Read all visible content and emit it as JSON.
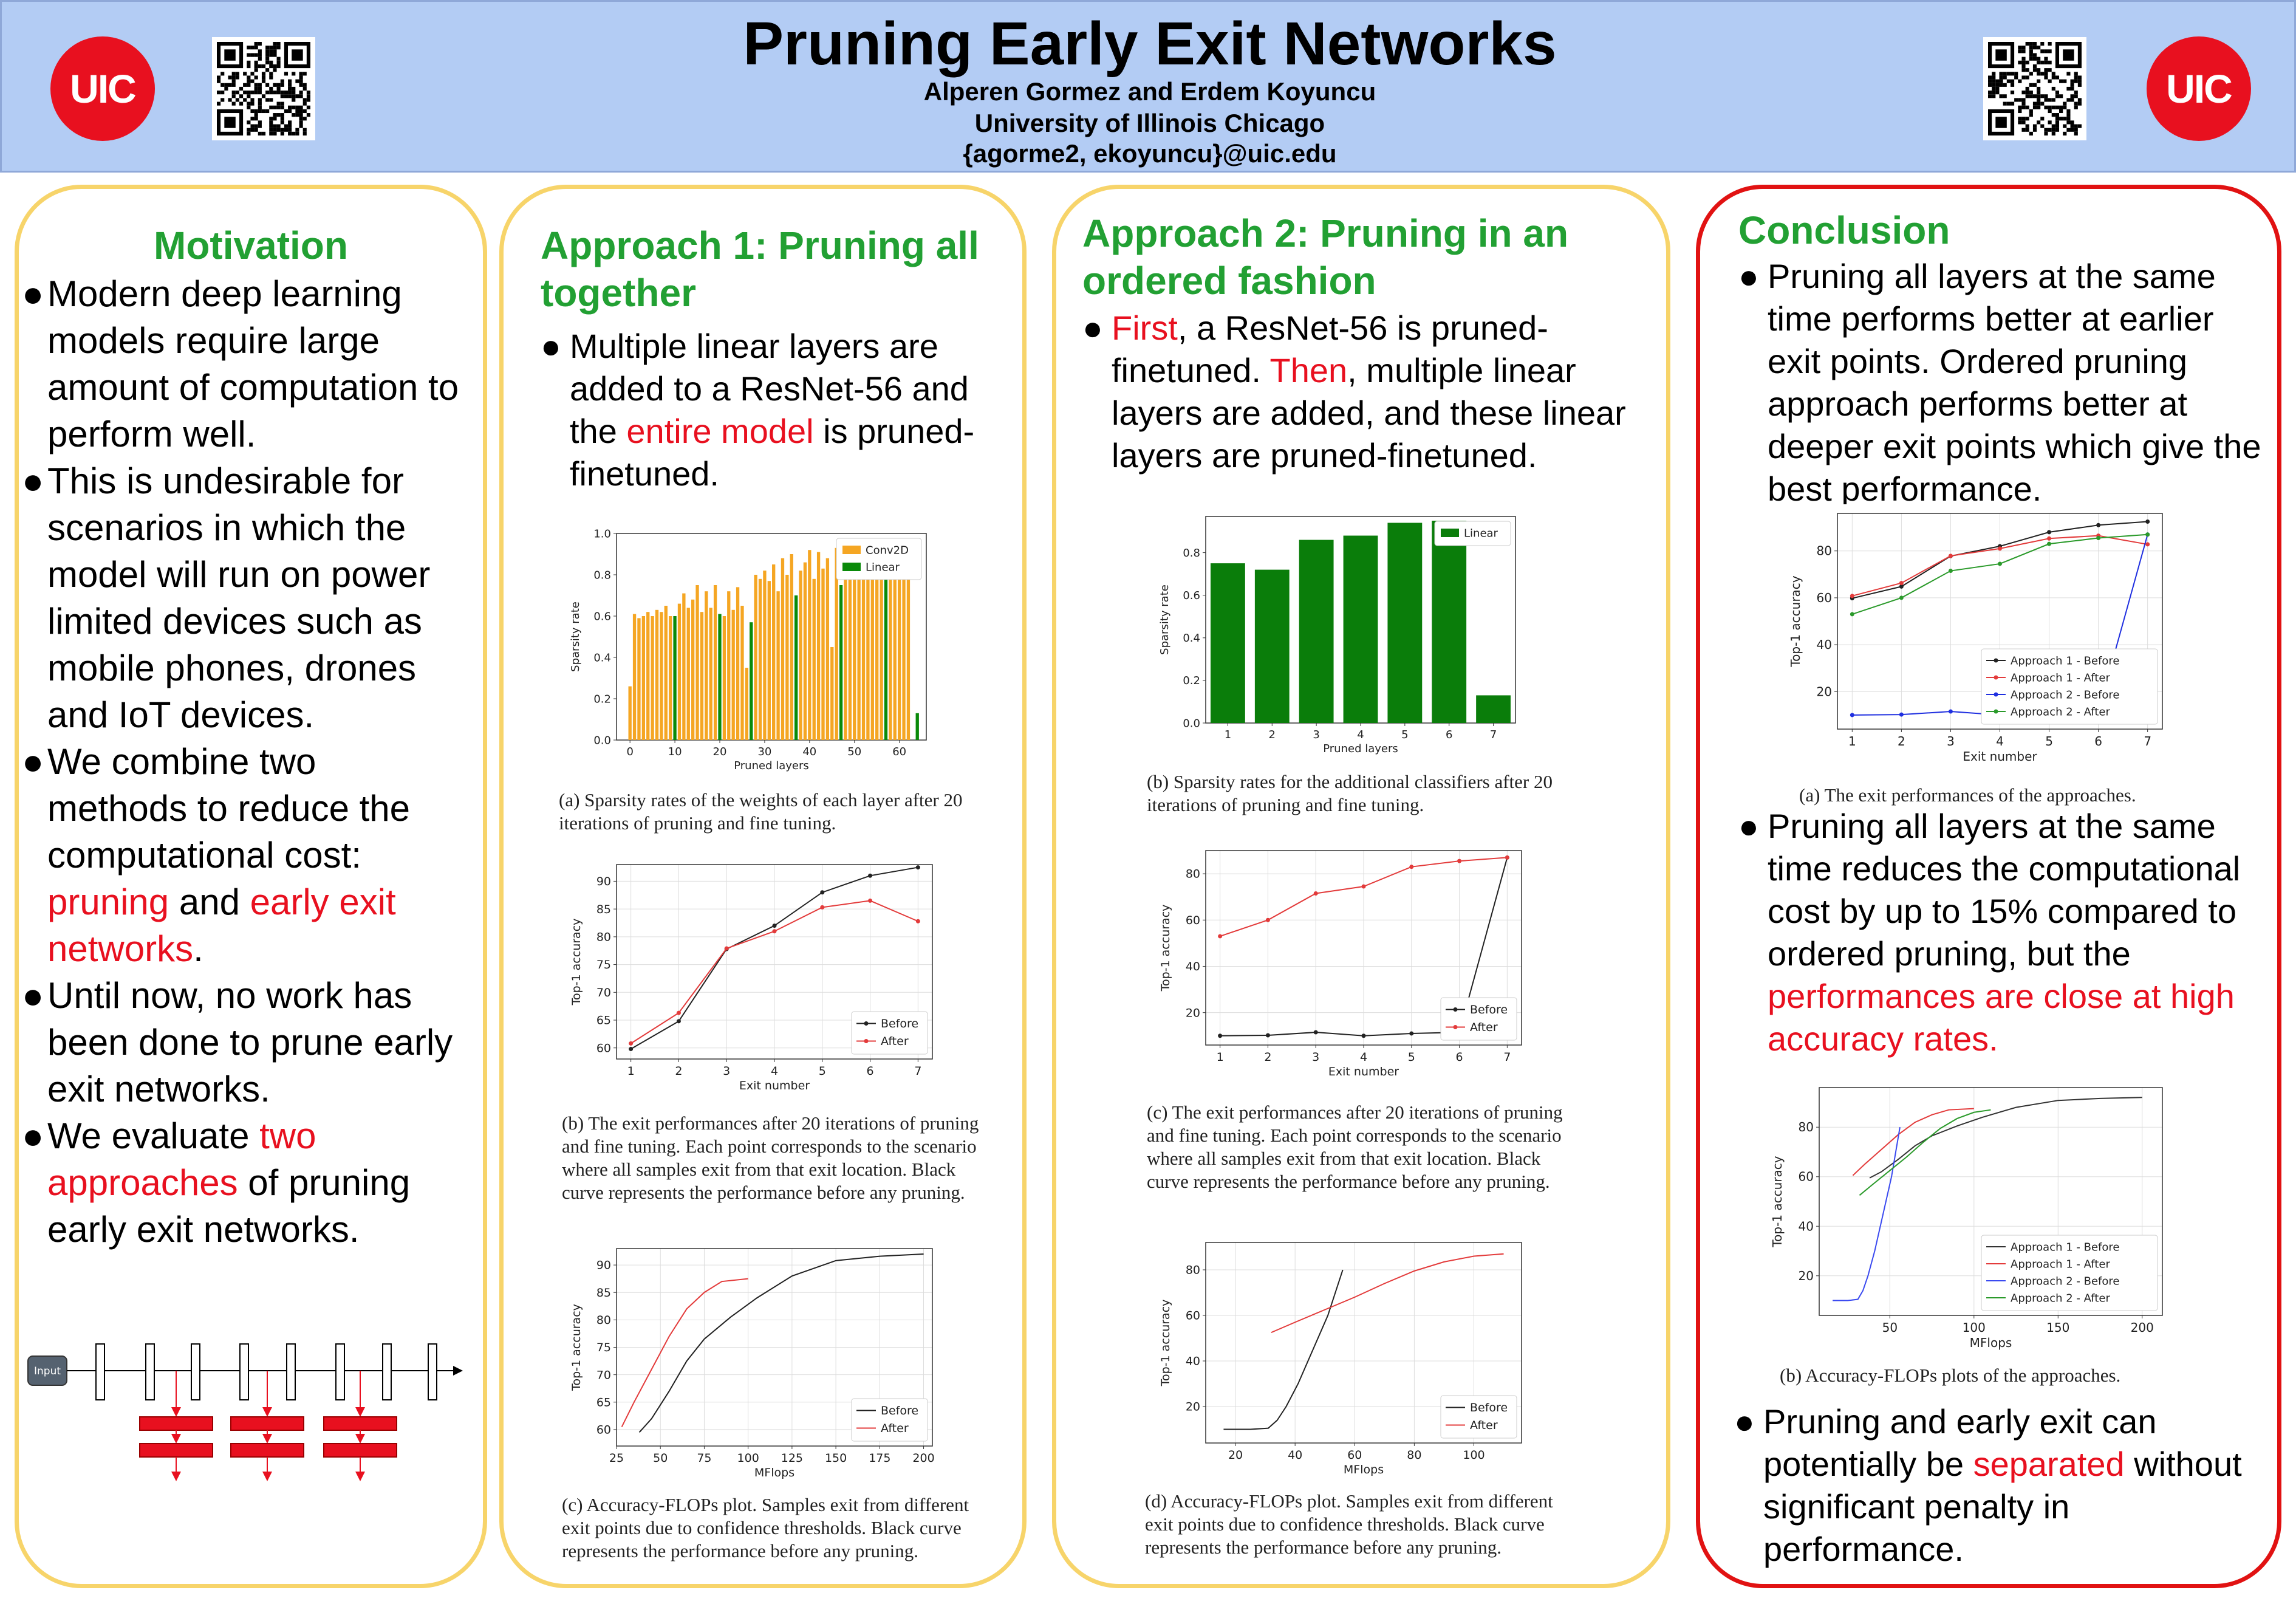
{
  "header": {
    "title": "Pruning Early Exit Networks",
    "authors": "Alperen Gormez and Erdem Koyuncu",
    "affiliation": "University of Illinois Chicago",
    "emails": "{agorme2, ekoyuncu}@uic.edu",
    "logo_text": "UIC"
  },
  "motivation": {
    "heading": "Motivation",
    "bullet": "●",
    "b1": "Modern deep learning models require large amount of computation to perform well.",
    "b2": "This is undesirable for scenarios in which the model will run on power limited devices such as mobile phones, drones and IoT devices.",
    "b3a": "We combine two methods to reduce the computational cost: ",
    "b3r1": "pruning",
    "b3m": " and ",
    "b3r2": "early exit networks",
    "b3e": ".",
    "b4": "Until now, no work has been done to prune early exit networks.",
    "b5a": "We evaluate ",
    "b5r": "two approaches",
    "b5e": " of pruning early exit networks.",
    "diagram_input": "Input"
  },
  "approach1": {
    "heading": "Approach 1: Pruning all together",
    "b1a": "Multiple linear layers are added to a ResNet-56 and the ",
    "b1r": "entire model",
    "b1e": " is pruned-finetuned.",
    "cap_a": "(a) Sparsity rates of the weights of each layer after 20 iterations of pruning and fine tuning.",
    "cap_b": "(b) The exit performances after 20 iterations of pruning and fine tuning. Each point corresponds to the scenario where all samples exit from that exit location. Black curve represents the performance before any pruning.",
    "cap_c": "(c) Accuracy-FLOPs plot. Samples exit from different exit points due to confidence thresholds. Black curve represents the performance before any pruning."
  },
  "approach2": {
    "heading": "Approach 2: Pruning in an ordered fashion",
    "b1r1": "First",
    "b1a": ", a ResNet-56 is pruned-finetuned. ",
    "b1r2": "Then",
    "b1e": ", multiple linear layers are added, and these linear layers are pruned-finetuned.",
    "cap_b": "(b) Sparsity rates for the additional classifiers after 20 iterations of pruning and fine tuning.",
    "cap_c": "(c) The exit performances after 20 iterations of pruning and fine tuning. Each point corresponds to the scenario where all samples exit from that exit location. Black curve represents the performance before any pruning.",
    "cap_d": "(d) Accuracy-FLOPs plot. Samples exit from different exit points due to confidence thresholds. Black curve represents the performance before any pruning."
  },
  "conclusion": {
    "heading": "Conclusion",
    "b1": "Pruning all layers at the same time performs better at earlier exit points. Ordered pruning approach performs better at deeper exit points which give the best performance.",
    "cap_a": "(a) The exit performances of the approaches.",
    "b2a": "Pruning all layers at the same time reduces the computational cost by up to 15% compared to ordered pruning, but the ",
    "b2r": "performances are close at high accuracy rates.",
    "cap_b": "(b) Accuracy-FLOPs plots of the approaches.",
    "b3a": "Pruning and early exit can potentially be ",
    "b3r": "separated",
    "b3e": " without significant penalty in performance."
  },
  "chart_data": [
    {
      "id": "a1_sparsity",
      "type": "bar",
      "xlabel": "Pruned layers",
      "ylabel": "Sparsity rate",
      "ylim": [
        0,
        1.0
      ],
      "xlim": [
        -3,
        66
      ],
      "xticks": [
        0,
        10,
        20,
        30,
        40,
        50,
        60
      ],
      "yticks": [
        0.0,
        0.2,
        0.4,
        0.6,
        0.8,
        1.0
      ],
      "legend": "top-right",
      "colors": {
        "Conv2D": "#f5a623",
        "Linear": "#0a8a0a"
      },
      "series": [
        {
          "name": "Conv2D",
          "x": [
            0,
            1,
            2,
            3,
            4,
            5,
            6,
            7,
            8,
            9,
            11,
            12,
            13,
            14,
            15,
            16,
            17,
            18,
            19,
            21,
            22,
            23,
            24,
            25,
            26,
            28,
            29,
            30,
            31,
            32,
            33,
            34,
            35,
            36,
            38,
            39,
            40,
            41,
            42,
            43,
            44,
            45,
            46,
            48,
            49,
            50,
            51,
            52,
            53,
            54,
            55,
            56,
            58,
            59,
            60,
            61,
            62
          ],
          "values": [
            0.26,
            0.61,
            0.59,
            0.6,
            0.62,
            0.6,
            0.63,
            0.62,
            0.65,
            0.6,
            0.66,
            0.71,
            0.64,
            0.68,
            0.75,
            0.62,
            0.72,
            0.64,
            0.75,
            0.6,
            0.72,
            0.63,
            0.74,
            0.65,
            0.35,
            0.8,
            0.78,
            0.82,
            0.77,
            0.85,
            0.72,
            0.88,
            0.8,
            0.9,
            0.82,
            0.86,
            0.92,
            0.78,
            0.91,
            0.83,
            0.88,
            0.45,
            0.93,
            0.85,
            0.84,
            0.92,
            0.8,
            0.92,
            0.88,
            0.95,
            0.92,
            0.94,
            0.93,
            0.96,
            0.95,
            0.96,
            0.97
          ]
        },
        {
          "name": "Linear",
          "x": [
            10,
            20,
            27,
            37,
            47,
            57,
            64
          ],
          "values": [
            0.6,
            0.61,
            0.57,
            0.7,
            0.75,
            0.78,
            0.13
          ]
        }
      ]
    },
    {
      "id": "a1_exit",
      "type": "line",
      "xlabel": "Exit number",
      "ylabel": "Top-1 accuracy",
      "x": [
        1,
        2,
        3,
        4,
        5,
        6,
        7
      ],
      "xlim": [
        0.7,
        7.3
      ],
      "ylim": [
        58,
        93
      ],
      "yticks": [
        60,
        65,
        70,
        75,
        80,
        85,
        90
      ],
      "legend": "bottom-right",
      "series": [
        {
          "name": "Before",
          "color": "#222222",
          "values": [
            59.8,
            64.8,
            77.8,
            82.0,
            88.0,
            91.0,
            92.5
          ]
        },
        {
          "name": "After",
          "color": "#e33b3b",
          "values": [
            60.8,
            66.3,
            77.9,
            81.0,
            85.3,
            86.5,
            82.8
          ]
        }
      ]
    },
    {
      "id": "a1_flops",
      "type": "line",
      "xlabel": "MFlops",
      "ylabel": "Top-1 accuracy",
      "xlim": [
        25,
        205
      ],
      "ylim": [
        57,
        93
      ],
      "xticks": [
        25,
        50,
        75,
        100,
        125,
        150,
        175,
        200
      ],
      "yticks": [
        60,
        65,
        70,
        75,
        80,
        85,
        90
      ],
      "legend": "bottom-right",
      "series": [
        {
          "name": "Before",
          "color": "#222222",
          "x": [
            38,
            45,
            55,
            65,
            75,
            90,
            105,
            125,
            150,
            175,
            200
          ],
          "values": [
            59.5,
            62,
            67,
            72.5,
            76.5,
            80.5,
            84,
            88,
            90.8,
            91.6,
            92
          ]
        },
        {
          "name": "After",
          "color": "#e33b3b",
          "x": [
            28,
            35,
            45,
            55,
            65,
            75,
            85,
            100
          ],
          "values": [
            60.5,
            65,
            71,
            77,
            82,
            85,
            87,
            87.5
          ]
        }
      ]
    },
    {
      "id": "a2_sparsity",
      "type": "bar",
      "xlabel": "Pruned layers",
      "ylabel": "Sparsity rate",
      "categories": [
        "1",
        "2",
        "3",
        "4",
        "5",
        "6",
        "7"
      ],
      "values": [
        0.75,
        0.72,
        0.86,
        0.88,
        0.94,
        0.95,
        0.13
      ],
      "ylim": [
        0,
        0.97
      ],
      "yticks": [
        0.0,
        0.2,
        0.4,
        0.6,
        0.8
      ],
      "legend": "top-right",
      "series": [
        {
          "name": "Linear",
          "color": "#0a7d0a"
        }
      ]
    },
    {
      "id": "a2_exit",
      "type": "line",
      "xlabel": "Exit number",
      "ylabel": "Top-1 accuracy",
      "x": [
        1,
        2,
        3,
        4,
        5,
        6,
        7
      ],
      "xlim": [
        0.7,
        7.3
      ],
      "ylim": [
        6,
        90
      ],
      "yticks": [
        20,
        40,
        60,
        80
      ],
      "legend": "bottom-right",
      "series": [
        {
          "name": "Before",
          "color": "#222222",
          "values": [
            10,
            10.2,
            11.5,
            10,
            11,
            11.5,
            87
          ]
        },
        {
          "name": "After",
          "color": "#e33b3b",
          "values": [
            53,
            60,
            71.5,
            74.5,
            83,
            85.5,
            87
          ]
        }
      ]
    },
    {
      "id": "a2_flops",
      "type": "line",
      "xlabel": "MFlops",
      "ylabel": "Top-1 accuracy",
      "xlim": [
        10,
        116
      ],
      "ylim": [
        4,
        92
      ],
      "xticks": [
        20,
        40,
        60,
        80,
        100
      ],
      "yticks": [
        20,
        40,
        60,
        80
      ],
      "legend": "bottom-right",
      "series": [
        {
          "name": "Before",
          "color": "#222222",
          "x": [
            16,
            25,
            31,
            34,
            37,
            41,
            46,
            51,
            54,
            56
          ],
          "values": [
            10,
            10,
            10.5,
            14,
            20,
            30,
            45,
            60,
            72,
            80
          ]
        },
        {
          "name": "After",
          "color": "#e33b3b",
          "x": [
            32,
            40,
            50,
            60,
            70,
            80,
            90,
            100,
            110
          ],
          "values": [
            52.5,
            57,
            62.5,
            68,
            74,
            79.5,
            83.5,
            86,
            87
          ]
        }
      ]
    },
    {
      "id": "c_exit",
      "type": "line",
      "xlabel": "Exit number",
      "ylabel": "Top-1 accuracy",
      "x": [
        1,
        2,
        3,
        4,
        5,
        6,
        7
      ],
      "xlim": [
        0.7,
        7.3
      ],
      "ylim": [
        4,
        96
      ],
      "yticks": [
        20,
        40,
        60,
        80
      ],
      "legend": "bottom-right",
      "series": [
        {
          "name": "Approach 1 - Before",
          "color": "#222222",
          "values": [
            59.8,
            64.8,
            77.8,
            82,
            88,
            91,
            92.5
          ]
        },
        {
          "name": "Approach 1 - After",
          "color": "#e33b3b",
          "values": [
            60.8,
            66.3,
            77.9,
            81,
            85.3,
            86.5,
            82.8
          ]
        },
        {
          "name": "Approach 2 - Before",
          "color": "#1f2fe0",
          "values": [
            10,
            10.2,
            11.5,
            10,
            11,
            11.5,
            87
          ]
        },
        {
          "name": "Approach 2 - After",
          "color": "#2a9a2a",
          "values": [
            53,
            60,
            71.5,
            74.5,
            83,
            85.5,
            87
          ]
        }
      ]
    },
    {
      "id": "c_flops",
      "type": "line",
      "xlabel": "MFlops",
      "ylabel": "Top-1 accuracy",
      "xlim": [
        8,
        212
      ],
      "ylim": [
        4,
        96
      ],
      "xticks": [
        50,
        100,
        150,
        200
      ],
      "yticks": [
        20,
        40,
        60,
        80
      ],
      "legend": "bottom-right",
      "series": [
        {
          "name": "Approach 1 - Before",
          "color": "#333333",
          "x": [
            38,
            45,
            55,
            65,
            75,
            90,
            105,
            125,
            150,
            175,
            200
          ],
          "values": [
            59.5,
            62,
            67,
            72.5,
            76.5,
            80.5,
            84,
            88,
            90.8,
            91.6,
            92
          ]
        },
        {
          "name": "Approach 1 - After",
          "color": "#e33b3b",
          "x": [
            28,
            35,
            45,
            55,
            65,
            75,
            85,
            100
          ],
          "values": [
            60.5,
            65,
            71,
            77,
            82,
            85,
            87,
            87.5
          ]
        },
        {
          "name": "Approach 2 - Before",
          "color": "#3a4af0",
          "x": [
            16,
            25,
            31,
            34,
            37,
            41,
            46,
            51,
            54,
            56
          ],
          "values": [
            10,
            10,
            10.5,
            14,
            20,
            30,
            45,
            60,
            72,
            80
          ]
        },
        {
          "name": "Approach 2 - After",
          "color": "#2a9a2a",
          "x": [
            32,
            40,
            50,
            60,
            70,
            80,
            90,
            100,
            110
          ],
          "values": [
            52.5,
            57,
            62.5,
            68,
            74,
            79.5,
            83.5,
            86,
            87
          ]
        }
      ]
    }
  ]
}
